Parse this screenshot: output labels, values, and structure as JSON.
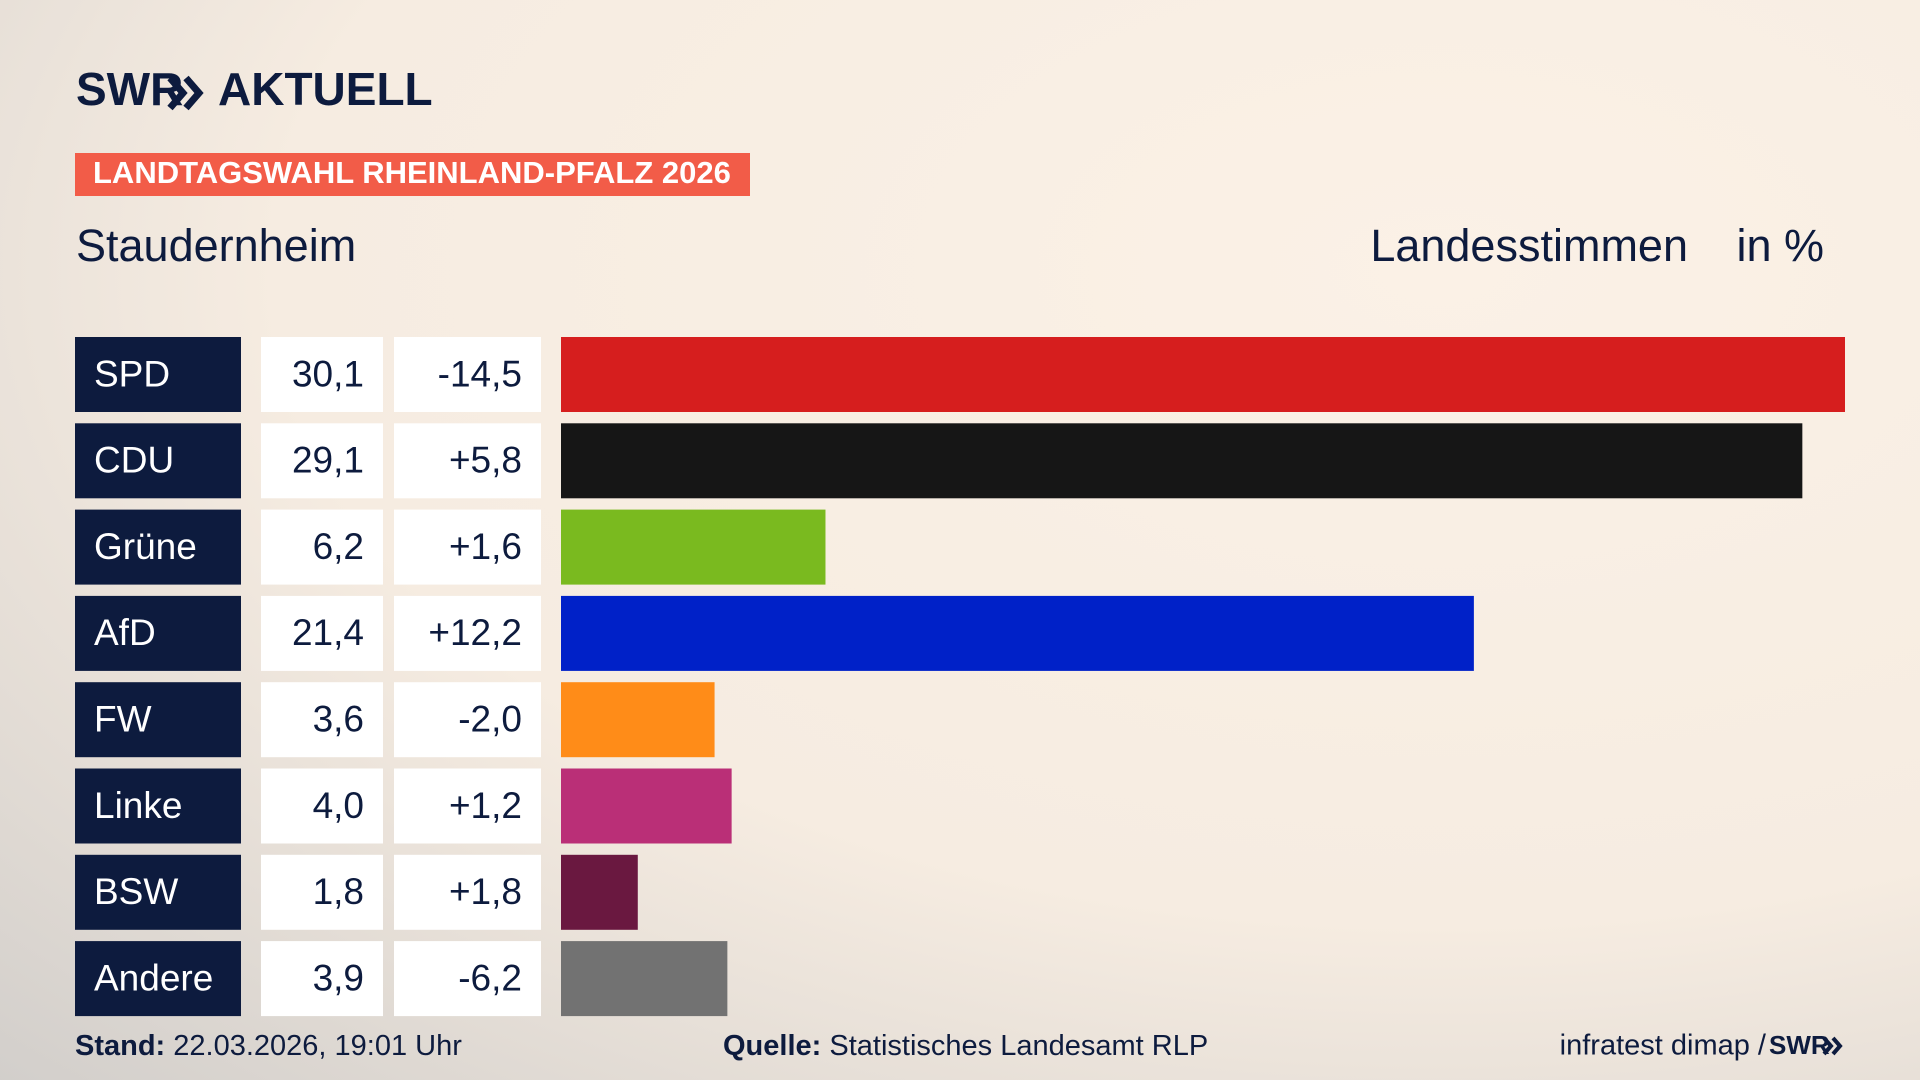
{
  "chart_data": {
    "type": "bar",
    "logo": "SWR",
    "logo_suffix": "AKTUELL",
    "banner": "LANDTAGSWAHL RHEINLAND-PFALZ 2026",
    "title": "Staudernheim",
    "value_header": "Landesstimmen",
    "unit_header": "in %",
    "categories": [
      "SPD",
      "CDU",
      "Grüne",
      "AfD",
      "FW",
      "Linke",
      "BSW",
      "Andere"
    ],
    "values": [
      30.1,
      29.1,
      6.2,
      21.4,
      3.6,
      4.0,
      1.8,
      3.9
    ],
    "value_labels": [
      "30,1",
      "29,1",
      "6,2",
      "21,4",
      "3,6",
      "4,0",
      "1,8",
      "3,9"
    ],
    "changes": [
      -14.5,
      5.8,
      1.6,
      12.2,
      -2.0,
      1.2,
      1.8,
      -6.2
    ],
    "change_labels": [
      "-14,5",
      "+5,8",
      "+1,6",
      "+12,2",
      "-2,0",
      "+1,2",
      "+1,8",
      "-6,2"
    ],
    "colors": [
      "#d61e1e",
      "#161616",
      "#7aba1f",
      "#0021c8",
      "#ff8c18",
      "#ba2f77",
      "#6a1840",
      "#727272"
    ],
    "footer": {
      "stand_label": "Stand:",
      "stand": "22.03.2026, 19:01 Uhr",
      "source_label": "Quelle:",
      "source": "Statistisches Landesamt RLP",
      "credit": "infratest dimap /",
      "credit_logo": "SWR"
    }
  }
}
